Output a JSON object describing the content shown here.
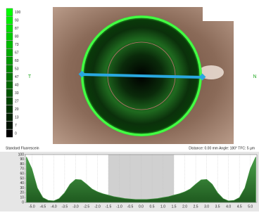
{
  "scale": {
    "values": [
      100,
      93,
      87,
      80,
      73,
      67,
      60,
      53,
      47,
      40,
      33,
      27,
      20,
      13,
      7,
      0
    ],
    "colors": [
      "#00ff00",
      "#00ee00",
      "#00dd00",
      "#00cc00",
      "#00bb00",
      "#00aa00",
      "#009900",
      "#008800",
      "#007700",
      "#006600",
      "#005500",
      "#004400",
      "#003300",
      "#002200",
      "#001100",
      "#000000"
    ]
  },
  "side_left": "T",
  "side_right": "N",
  "mode": "Standard Fluorescein",
  "status": "Distance: 0.00 mm   Angle: 180°   TFC: 5 µm",
  "chart_data": {
    "type": "area",
    "color": "#3d8f3d",
    "x": [
      -5.25,
      -5.0,
      -4.75,
      -4.5,
      -4.25,
      -4.0,
      -3.75,
      -3.5,
      -3.25,
      -3.0,
      -2.75,
      -2.5,
      -2.25,
      -2.0,
      -1.75,
      -1.5,
      -1.25,
      -1.0,
      -0.75,
      -0.5,
      -0.25,
      0,
      0.25,
      0.5,
      0.75,
      1.0,
      1.25,
      1.5,
      1.75,
      2.0,
      2.25,
      2.5,
      2.75,
      3.0,
      3.25,
      3.5,
      3.75,
      4.0,
      4.25,
      4.5,
      4.75,
      5.0,
      5.25
    ],
    "values": [
      95,
      70,
      30,
      10,
      4,
      3,
      8,
      20,
      38,
      48,
      47,
      38,
      28,
      22,
      18,
      15,
      12,
      10,
      8,
      7,
      6,
      6,
      6,
      7,
      8,
      10,
      12,
      15,
      18,
      22,
      28,
      38,
      47,
      48,
      38,
      20,
      8,
      3,
      4,
      10,
      30,
      70,
      95
    ],
    "xlim": [
      -5.3,
      5.3
    ],
    "ylim": [
      0,
      100
    ],
    "xticks": [
      {
        "value": -5,
        "label": "-5.0"
      },
      -4.5,
      {
        "value": -4,
        "label": "-4.0"
      },
      -3.5,
      {
        "value": -3,
        "label": "-3.0"
      },
      -2.5,
      {
        "value": -2,
        "label": "-2.0"
      },
      -1.5,
      {
        "value": -1,
        "label": "-1.0"
      },
      -0.5,
      {
        "value": 0,
        "label": "0.0"
      },
      0.5,
      {
        "value": 1,
        "label": "1.0"
      },
      1.5,
      {
        "value": 2,
        "label": "2.0"
      },
      2.5,
      {
        "value": 3,
        "label": "3.0"
      },
      3.5,
      {
        "value": 4,
        "label": "4.0"
      },
      4.5,
      {
        "value": 5,
        "label": "5.0"
      }
    ],
    "yticks": [
      0,
      10,
      20,
      30,
      40,
      50,
      60,
      70,
      80,
      90,
      100
    ],
    "shaded_range": [
      -1.5,
      1.5
    ],
    "grid": true
  }
}
